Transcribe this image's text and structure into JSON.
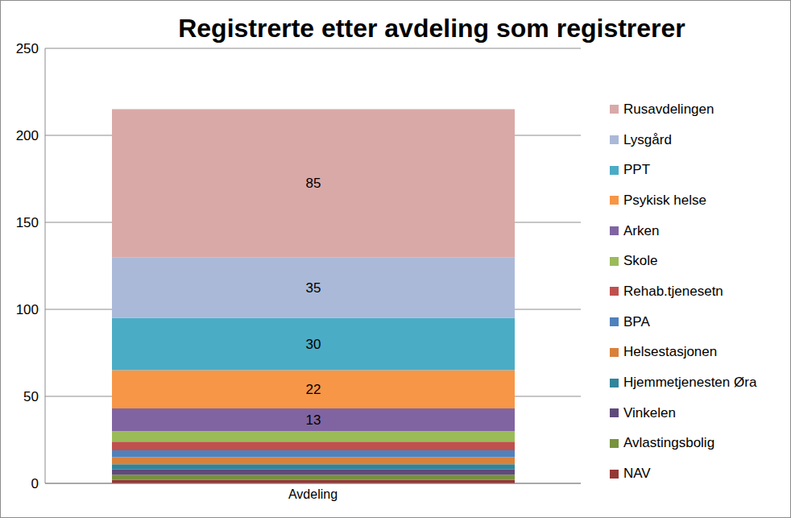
{
  "chart_data": {
    "type": "bar",
    "title": "Registrerte etter avdeling som registrerer",
    "categories": [
      "Avdeling"
    ],
    "stacked": true,
    "grid": true,
    "legend": "right",
    "ylim": [
      0,
      250
    ],
    "yticks": [
      0,
      50,
      100,
      150,
      200,
      250
    ],
    "series": [
      {
        "name": "Rusavdelingen",
        "color": "#d9a9a8",
        "values": [
          85
        ],
        "data_labels": true
      },
      {
        "name": "Lysgård",
        "color": "#aab9d8",
        "values": [
          35
        ],
        "data_labels": true
      },
      {
        "name": "PPT",
        "color": "#4bacc6",
        "values": [
          30
        ],
        "data_labels": true
      },
      {
        "name": "Psykisk helse",
        "color": "#f79646",
        "values": [
          22
        ],
        "data_labels": true
      },
      {
        "name": "Arken",
        "color": "#8064a2",
        "values": [
          13
        ],
        "data_labels": true
      },
      {
        "name": "Skole",
        "color": "#9bbb59",
        "values": [
          6
        ]
      },
      {
        "name": "Rehab.tjenesetn",
        "color": "#c0504d",
        "values": [
          5
        ]
      },
      {
        "name": "BPA",
        "color": "#4f81bd",
        "values": [
          4
        ]
      },
      {
        "name": "Helsestasjonen",
        "color": "#d9813a",
        "values": [
          4
        ]
      },
      {
        "name": "Hjemmetjenesten Øra",
        "color": "#31859c",
        "values": [
          3
        ]
      },
      {
        "name": "Vinkelen",
        "color": "#604a7b",
        "values": [
          3
        ]
      },
      {
        "name": "Avlastingsbolig",
        "color": "#77933c",
        "values": [
          3
        ]
      },
      {
        "name": "NAV",
        "color": "#953735",
        "values": [
          2
        ]
      }
    ]
  }
}
